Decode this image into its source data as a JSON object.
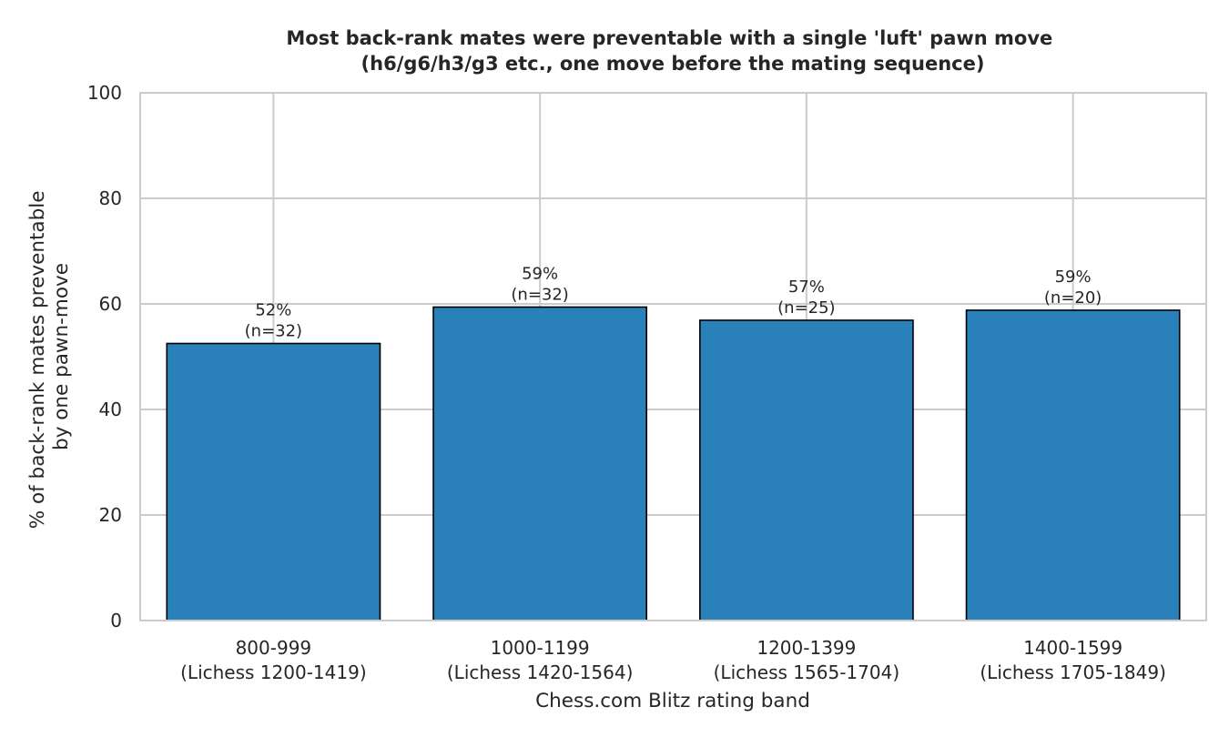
{
  "chart_data": {
    "type": "bar",
    "title": [
      "Most back-rank mates were preventable with a single 'luft' pawn move",
      "(h6/g6/h3/g3 etc., one move before the mating sequence)"
    ],
    "xlabel": "Chess.com Blitz rating band",
    "ylabel": [
      "% of back-rank mates preventable",
      "by one pawn-move"
    ],
    "ylim": [
      0,
      100
    ],
    "yticks": [
      0,
      20,
      40,
      60,
      80,
      100
    ],
    "grid": true,
    "bar_color": "#2a80b9",
    "categories": [
      [
        "800-999",
        "(Lichess 1200-1419)"
      ],
      [
        "1000-1199",
        "(Lichess 1420-1564)"
      ],
      [
        "1200-1399",
        "(Lichess 1565-1704)"
      ],
      [
        "1400-1599",
        "(Lichess 1705-1849)"
      ]
    ],
    "values": [
      52.5,
      59.4,
      56.9,
      58.8
    ],
    "data_labels": [
      [
        "52%",
        "(n=32)"
      ],
      [
        "59%",
        "(n=32)"
      ],
      [
        "57%",
        "(n=25)"
      ],
      [
        "59%",
        "(n=20)"
      ]
    ]
  }
}
